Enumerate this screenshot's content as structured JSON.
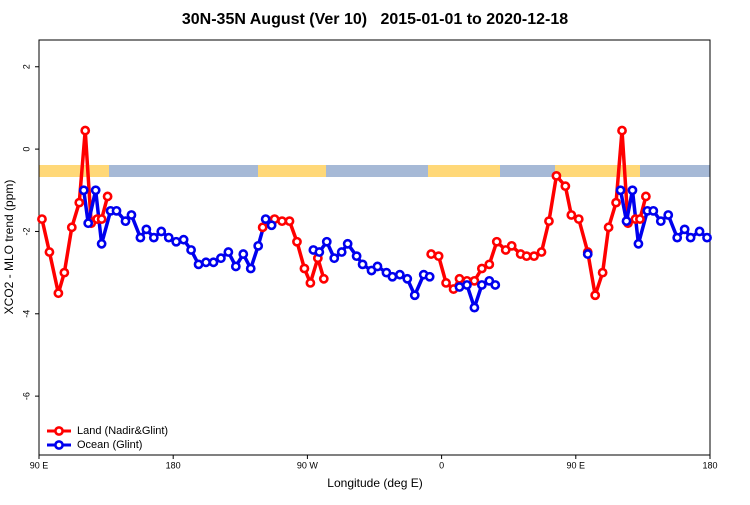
{
  "chart_data": {
    "type": "line",
    "title": "30N-35N August (Ver 10)   2015-01-01 to 2020-12-18",
    "x_label": "Longitude (deg E)",
    "y_label": "XCO2 - MLO trend (ppm)",
    "xlim": [
      90,
      540
    ],
    "xticks": [
      {
        "value": 90,
        "label": "90 E"
      },
      180,
      {
        "value": 270,
        "label": "90 W"
      },
      {
        "value": 360,
        "label": "0"
      },
      {
        "value": 450,
        "label": "90 E"
      },
      {
        "value": 540,
        "label": "180"
      }
    ],
    "ylim": [
      -7.43,
      2.65
    ],
    "yticks": [
      -6,
      -4,
      -2,
      0,
      2
    ],
    "grid": false,
    "legend": "bottom-left",
    "series": [
      {
        "name": "Land (Nadir&Glint)",
        "color": "#ff0000",
        "x": [
          92,
          97,
          103,
          107,
          112,
          117,
          121,
          125,
          129,
          132,
          136,
          null,
          240,
          244,
          248,
          253,
          258,
          263,
          268,
          272,
          277,
          281,
          null,
          353,
          358,
          363,
          368,
          372,
          377,
          382,
          387,
          392,
          397,
          403,
          407,
          413,
          417,
          422,
          427,
          432,
          437,
          443,
          447,
          452,
          458,
          463,
          468,
          472,
          477,
          481,
          485,
          490,
          493,
          497
        ],
        "values": [
          -1.7,
          -2.5,
          -3.5,
          -3.0,
          -1.9,
          -1.3,
          0.45,
          -1.8,
          -1.7,
          -1.7,
          -1.15,
          null,
          -1.9,
          -1.75,
          -1.7,
          -1.75,
          -1.75,
          -2.25,
          -2.9,
          -3.25,
          -2.65,
          -3.15,
          null,
          -2.55,
          -2.6,
          -3.25,
          -3.4,
          -3.15,
          -3.2,
          -3.2,
          -2.9,
          -2.8,
          -2.25,
          -2.45,
          -2.35,
          -2.55,
          -2.6,
          -2.6,
          -2.5,
          -1.75,
          -0.65,
          -0.9,
          -1.6,
          -1.7,
          -2.5,
          -3.55,
          -3.0,
          -1.9,
          -1.3,
          0.45,
          -1.8,
          -1.7,
          -1.7,
          -1.15
        ]
      },
      {
        "name": "Ocean (Glint)",
        "color": "#0000ee",
        "x": [
          120,
          123,
          128,
          132,
          138,
          142,
          148,
          152,
          158,
          162,
          167,
          172,
          177,
          182,
          187,
          192,
          197,
          202,
          207,
          212,
          217,
          222,
          227,
          232,
          237,
          242,
          246,
          null,
          274,
          278,
          283,
          288,
          293,
          297,
          303,
          307,
          313,
          317,
          323,
          327,
          332,
          337,
          342,
          348,
          352,
          null,
          372,
          377,
          382,
          387,
          392,
          396,
          null,
          458,
          null,
          480,
          484,
          488,
          492,
          498,
          502,
          507,
          512,
          518,
          523,
          527,
          533,
          538
        ],
        "values": [
          -1.0,
          -1.8,
          -1.0,
          -2.3,
          -1.5,
          -1.5,
          -1.75,
          -1.6,
          -2.15,
          -1.95,
          -2.15,
          -2.0,
          -2.15,
          -2.25,
          -2.2,
          -2.45,
          -2.8,
          -2.75,
          -2.75,
          -2.65,
          -2.5,
          -2.85,
          -2.55,
          -2.9,
          -2.35,
          -1.7,
          -1.85,
          null,
          -2.45,
          -2.5,
          -2.25,
          -2.65,
          -2.5,
          -2.3,
          -2.6,
          -2.8,
          -2.95,
          -2.85,
          -3.0,
          -3.1,
          -3.05,
          -3.15,
          -3.55,
          -3.05,
          -3.1,
          null,
          -3.35,
          -3.3,
          -3.85,
          -3.3,
          -3.2,
          -3.3,
          null,
          -2.55,
          null,
          -1.0,
          -1.75,
          -1.0,
          -2.3,
          -1.5,
          -1.5,
          -1.75,
          -1.6,
          -2.15,
          -1.95,
          -2.15,
          -2.0,
          -2.15
        ]
      }
    ]
  }
}
